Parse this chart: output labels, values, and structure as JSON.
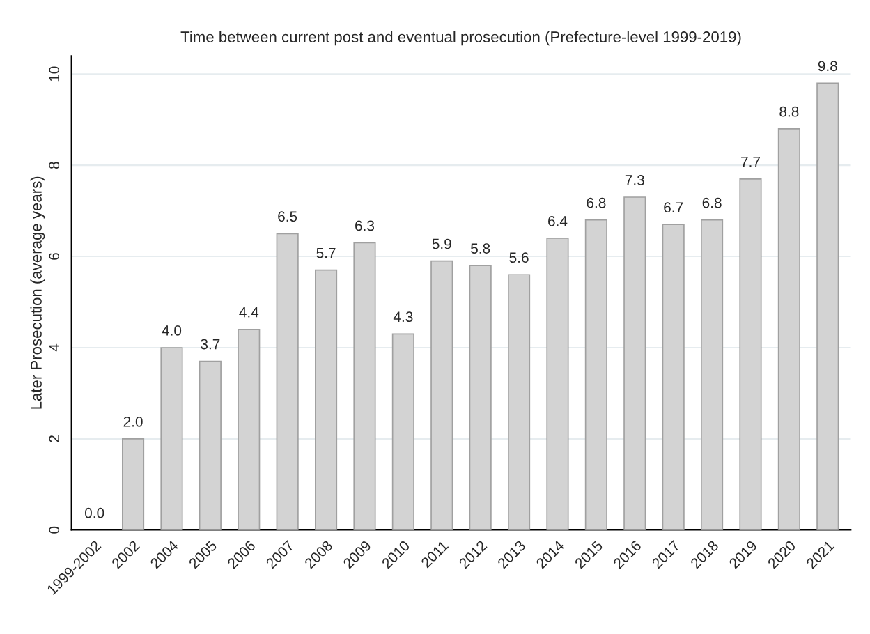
{
  "chart_data": {
    "type": "bar",
    "title": "Time between current post and eventual prosecution (Prefecture-level 1999-2019)",
    "ylabel": "Later Prosecution (average years)",
    "categories": [
      "1999-2002",
      "2002",
      "2004",
      "2005",
      "2006",
      "2007",
      "2008",
      "2009",
      "2010",
      "2011",
      "2012",
      "2013",
      "2014",
      "2015",
      "2016",
      "2017",
      "2018",
      "2019",
      "2020",
      "2021"
    ],
    "values": [
      0.0,
      2.0,
      4.0,
      3.7,
      4.4,
      6.5,
      5.7,
      6.3,
      4.3,
      5.9,
      5.8,
      5.6,
      6.4,
      6.8,
      7.3,
      6.7,
      6.8,
      7.7,
      8.8,
      9.8
    ],
    "color": "#d3d3d3",
    "ylim": [
      0,
      10.4
    ],
    "yticks": [
      0,
      2,
      4,
      6,
      8,
      10
    ],
    "value_labels": [
      "0.0",
      "2.0",
      "4.0",
      "3.7",
      "4.4",
      "6.5",
      "5.7",
      "6.3",
      "4.3",
      "5.9",
      "5.8",
      "5.6",
      "6.4",
      "6.8",
      "7.3",
      "6.7",
      "6.8",
      "7.7",
      "8.8",
      "9.8"
    ],
    "grid": "y"
  }
}
